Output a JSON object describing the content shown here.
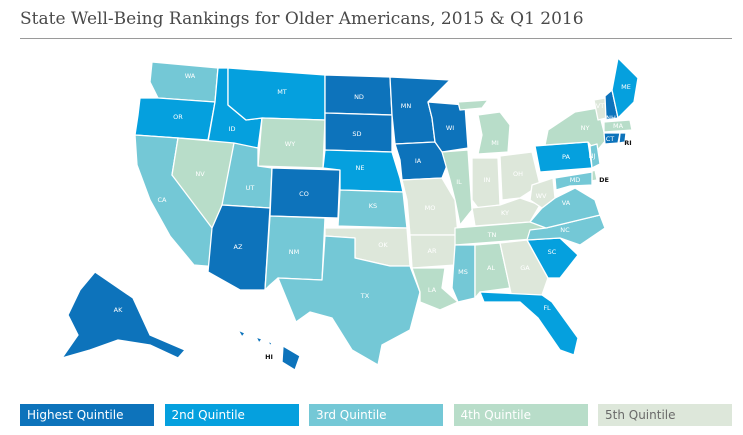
{
  "title": "State Well-Being Rankings for Older Americans, 2015 & Q1 2016",
  "colors": {
    "q1": "#0d73bb",
    "q2": "#05a0de",
    "q3": "#74c8d6",
    "q4": "#b8ddc9",
    "q5": "#dde7da"
  },
  "legend": [
    {
      "label": "Highest Quintile",
      "color": "#0d73bb",
      "text_color": "#ffffff"
    },
    {
      "label": "2nd Quintile",
      "color": "#05a0de",
      "text_color": "#ffffff"
    },
    {
      "label": "3rd Quintile",
      "color": "#74c8d6",
      "text_color": "#ffffff"
    },
    {
      "label": "4th Quintile",
      "color": "#b8ddc9",
      "text_color": "#ffffff"
    },
    {
      "label": "5th Quintile",
      "color": "#dde7da",
      "text_color": "#6a6a6a"
    }
  ],
  "states": [
    {
      "abbr": "WA",
      "quintile": 3
    },
    {
      "abbr": "OR",
      "quintile": 2
    },
    {
      "abbr": "CA",
      "quintile": 3
    },
    {
      "abbr": "ID",
      "quintile": 2
    },
    {
      "abbr": "NV",
      "quintile": 4
    },
    {
      "abbr": "MT",
      "quintile": 2
    },
    {
      "abbr": "WY",
      "quintile": 4
    },
    {
      "abbr": "UT",
      "quintile": 3
    },
    {
      "abbr": "AZ",
      "quintile": 1
    },
    {
      "abbr": "CO",
      "quintile": 1
    },
    {
      "abbr": "NM",
      "quintile": 3
    },
    {
      "abbr": "ND",
      "quintile": 1
    },
    {
      "abbr": "SD",
      "quintile": 1
    },
    {
      "abbr": "NE",
      "quintile": 2
    },
    {
      "abbr": "KS",
      "quintile": 3
    },
    {
      "abbr": "OK",
      "quintile": 5
    },
    {
      "abbr": "TX",
      "quintile": 3
    },
    {
      "abbr": "MN",
      "quintile": 1
    },
    {
      "abbr": "IA",
      "quintile": 1
    },
    {
      "abbr": "MO",
      "quintile": 5
    },
    {
      "abbr": "AR",
      "quintile": 5
    },
    {
      "abbr": "LA",
      "quintile": 4
    },
    {
      "abbr": "WI",
      "quintile": 1
    },
    {
      "abbr": "IL",
      "quintile": 4
    },
    {
      "abbr": "MI",
      "quintile": 4
    },
    {
      "abbr": "IN",
      "quintile": 5
    },
    {
      "abbr": "OH",
      "quintile": 5
    },
    {
      "abbr": "KY",
      "quintile": 5
    },
    {
      "abbr": "TN",
      "quintile": 4
    },
    {
      "abbr": "MS",
      "quintile": 3
    },
    {
      "abbr": "AL",
      "quintile": 4
    },
    {
      "abbr": "GA",
      "quintile": 5
    },
    {
      "abbr": "FL",
      "quintile": 2
    },
    {
      "abbr": "SC",
      "quintile": 2
    },
    {
      "abbr": "NC",
      "quintile": 3
    },
    {
      "abbr": "VA",
      "quintile": 3
    },
    {
      "abbr": "WV",
      "quintile": 5
    },
    {
      "abbr": "PA",
      "quintile": 2
    },
    {
      "abbr": "NY",
      "quintile": 4
    },
    {
      "abbr": "VT",
      "quintile": 5
    },
    {
      "abbr": "NH",
      "quintile": 1
    },
    {
      "abbr": "ME",
      "quintile": 2
    },
    {
      "abbr": "MA",
      "quintile": 4
    },
    {
      "abbr": "CT",
      "quintile": 1
    },
    {
      "abbr": "RI",
      "quintile": 1
    },
    {
      "abbr": "NJ",
      "quintile": 3
    },
    {
      "abbr": "DE",
      "quintile": 4
    },
    {
      "abbr": "MD",
      "quintile": 3
    },
    {
      "abbr": "AK",
      "quintile": 1
    },
    {
      "abbr": "HI",
      "quintile": 1
    }
  ]
}
